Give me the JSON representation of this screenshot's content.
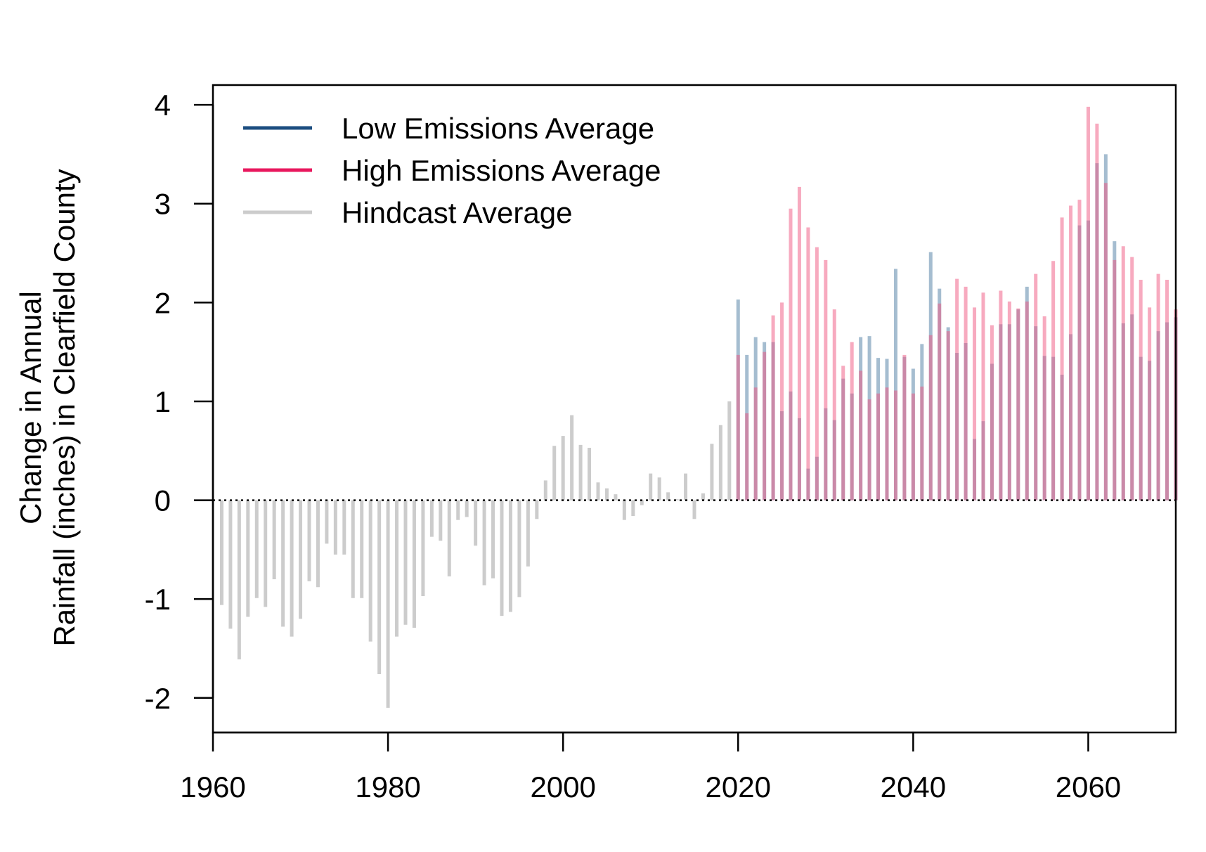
{
  "chart_data": {
    "type": "bar",
    "title": "",
    "xlabel": "",
    "ylabel_lines": [
      "Change in Annual",
      "Rainfall (inches) in Clearfield County"
    ],
    "xlim": [
      1960,
      2070
    ],
    "ylim": [
      -2.35,
      4.2
    ],
    "xticks": [
      1960,
      1980,
      2000,
      2020,
      2040,
      2060
    ],
    "yticks": [
      -2,
      -1,
      0,
      1,
      2,
      3,
      4
    ],
    "grid": false,
    "legend_position": "top-left",
    "reference_line": {
      "y": 0,
      "style": "dotted",
      "color": "#000000"
    },
    "series": [
      {
        "name": "Low Emissions Average",
        "color": "#1f5a8a",
        "legend_color": "#1c4e80",
        "opacity": 0.4,
        "x": [
          2020,
          2021,
          2022,
          2023,
          2024,
          2025,
          2026,
          2027,
          2028,
          2029,
          2030,
          2031,
          2032,
          2033,
          2034,
          2035,
          2036,
          2037,
          2038,
          2039,
          2040,
          2041,
          2042,
          2043,
          2044,
          2045,
          2046,
          2047,
          2048,
          2049,
          2050,
          2051,
          2052,
          2053,
          2054,
          2055,
          2056,
          2057,
          2058,
          2059,
          2060,
          2061,
          2062,
          2063,
          2064,
          2065,
          2066,
          2067,
          2068,
          2069,
          2070
        ],
        "values": [
          2.03,
          1.47,
          1.65,
          1.6,
          1.6,
          0.9,
          1.1,
          0.83,
          0.32,
          0.44,
          0.93,
          0.81,
          1.23,
          1.08,
          1.65,
          1.66,
          1.44,
          1.43,
          2.34,
          1.45,
          1.33,
          1.58,
          2.51,
          2.14,
          1.75,
          1.49,
          1.59,
          0.62,
          0.8,
          1.38,
          1.78,
          1.78,
          1.93,
          2.16,
          1.76,
          1.46,
          1.45,
          1.27,
          1.68,
          2.78,
          2.83,
          3.41,
          3.5,
          2.62,
          1.79,
          1.88,
          1.45,
          1.41,
          1.71,
          1.8,
          1.85
        ]
      },
      {
        "name": "High Emissions Average",
        "color": "#f0567f",
        "legend_color": "#e8175d",
        "opacity": 0.5,
        "x": [
          2020,
          2021,
          2022,
          2023,
          2024,
          2025,
          2026,
          2027,
          2028,
          2029,
          2030,
          2031,
          2032,
          2033,
          2034,
          2035,
          2036,
          2037,
          2038,
          2039,
          2040,
          2041,
          2042,
          2043,
          2044,
          2045,
          2046,
          2047,
          2048,
          2049,
          2050,
          2051,
          2052,
          2053,
          2054,
          2055,
          2056,
          2057,
          2058,
          2059,
          2060,
          2061,
          2062,
          2063,
          2064,
          2065,
          2066,
          2067,
          2068,
          2069,
          2070
        ],
        "values": [
          1.47,
          0.88,
          1.14,
          1.5,
          1.87,
          2.0,
          2.95,
          3.17,
          2.76,
          2.56,
          2.43,
          1.93,
          1.36,
          1.6,
          1.31,
          1.02,
          1.08,
          1.14,
          1.11,
          1.47,
          1.08,
          1.15,
          1.67,
          1.99,
          1.71,
          2.24,
          2.16,
          1.95,
          2.1,
          1.77,
          2.12,
          2.01,
          1.94,
          2.01,
          2.29,
          1.86,
          2.42,
          2.86,
          2.98,
          3.04,
          3.98,
          3.81,
          3.21,
          2.43,
          2.57,
          2.46,
          2.23,
          1.95,
          2.29,
          2.23,
          1.93
        ]
      },
      {
        "name": "Hindcast Average",
        "color": "#cccccc",
        "legend_color": "#cccccc",
        "opacity": 1,
        "x": [
          1961,
          1962,
          1963,
          1964,
          1965,
          1966,
          1967,
          1968,
          1969,
          1970,
          1971,
          1972,
          1973,
          1974,
          1975,
          1976,
          1977,
          1978,
          1979,
          1980,
          1981,
          1982,
          1983,
          1984,
          1985,
          1986,
          1987,
          1988,
          1989,
          1990,
          1991,
          1992,
          1993,
          1994,
          1995,
          1996,
          1997,
          1998,
          1999,
          2000,
          2001,
          2002,
          2003,
          2004,
          2005,
          2006,
          2007,
          2008,
          2009,
          2010,
          2011,
          2012,
          2013,
          2014,
          2015,
          2016,
          2017,
          2018,
          2019
        ],
        "values": [
          -1.06,
          -1.3,
          -1.61,
          -1.18,
          -0.99,
          -1.08,
          -0.8,
          -1.28,
          -1.38,
          -1.2,
          -0.82,
          -0.88,
          -0.44,
          -0.55,
          -0.55,
          -0.99,
          -0.99,
          -1.43,
          -1.76,
          -2.1,
          -1.38,
          -1.26,
          -1.29,
          -0.97,
          -0.37,
          -0.41,
          -0.77,
          -0.2,
          -0.17,
          -0.46,
          -0.86,
          -0.79,
          -1.17,
          -1.13,
          -0.98,
          -0.67,
          -0.19,
          0.2,
          0.55,
          0.65,
          0.86,
          0.56,
          0.53,
          0.18,
          0.12,
          0.06,
          -0.2,
          -0.16,
          -0.05,
          0.27,
          0.23,
          0.08,
          0.01,
          0.27,
          -0.19,
          0.07,
          0.57,
          0.76,
          1.0
        ]
      }
    ]
  }
}
